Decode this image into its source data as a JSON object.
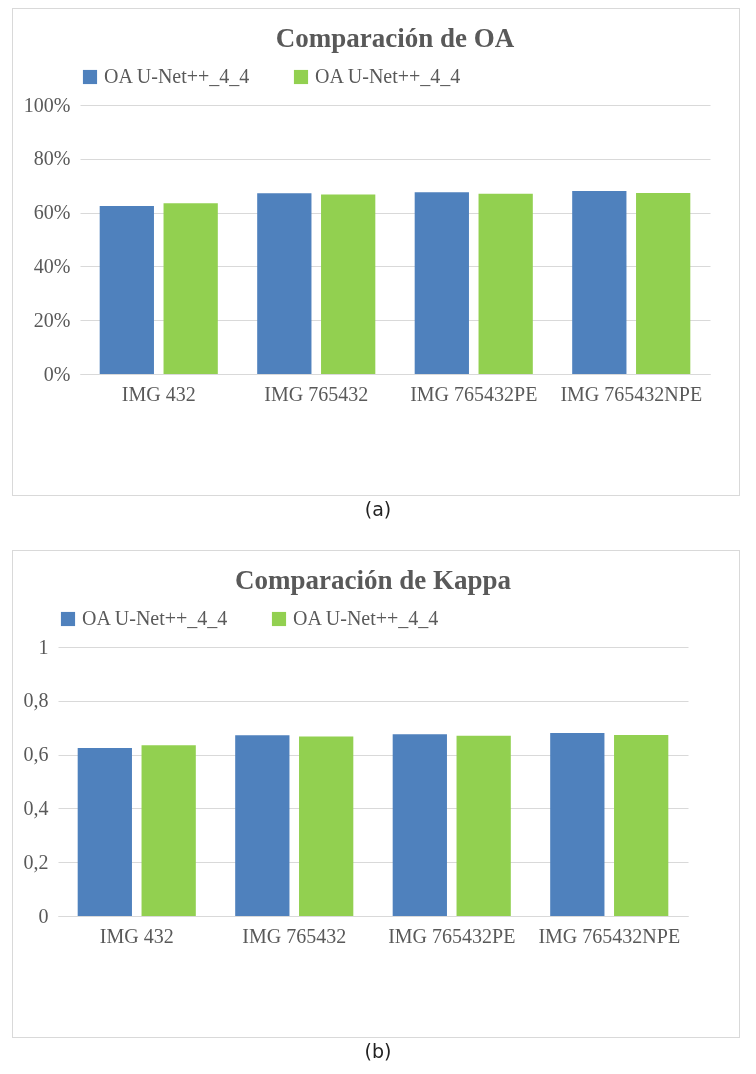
{
  "chart_data": [
    {
      "type": "bar",
      "title": "Comparación de OA",
      "categories": [
        "IMG 432",
        "IMG 765432",
        "IMG 765432PE",
        "IMG 765432NPE"
      ],
      "series": [
        {
          "name": "OA U-Net++_4_4",
          "color": "#4f81bd",
          "values": [
            62.5,
            67.2,
            67.6,
            68
          ]
        },
        {
          "name": "OA U-Net++_4_4",
          "color": "#92d050",
          "values": [
            63.5,
            66.7,
            67,
            67.3
          ]
        }
      ],
      "ylim": [
        0,
        100
      ],
      "yticks": [
        {
          "value": 0,
          "label": "0%"
        },
        {
          "value": 20,
          "label": "20%"
        },
        {
          "value": 40,
          "label": "40%"
        },
        {
          "value": 60,
          "label": "60%"
        },
        {
          "value": 80,
          "label": "80%"
        },
        {
          "value": 100,
          "label": "100%"
        }
      ],
      "grid": "y",
      "legend": "top",
      "annotations": [
        "(a)"
      ]
    },
    {
      "type": "bar",
      "title": "Comparación de Kappa",
      "categories": [
        "IMG 432",
        "IMG 765432",
        "IMG 765432PE",
        "IMG 765432NPE"
      ],
      "series": [
        {
          "name": "OA U-Net++_4_4",
          "color": "#4f81bd",
          "values": [
            0.625,
            0.672,
            0.676,
            0.68
          ]
        },
        {
          "name": "OA U-Net++_4_4",
          "color": "#92d050",
          "values": [
            0.635,
            0.667,
            0.67,
            0.673
          ]
        }
      ],
      "ylim": [
        0,
        1
      ],
      "yticks": [
        0,
        {
          "value": 0.2,
          "label": "0,2"
        },
        {
          "value": 0.4,
          "label": "0,4"
        },
        {
          "value": 0.6,
          "label": "0,6"
        },
        {
          "value": 0.8,
          "label": "0,8"
        },
        1
      ],
      "grid": "y",
      "legend": "top",
      "annotations": [
        "(b)"
      ]
    }
  ]
}
